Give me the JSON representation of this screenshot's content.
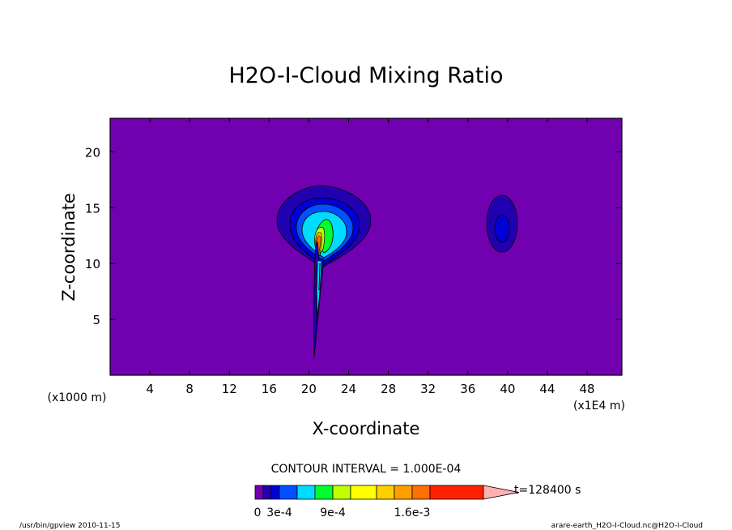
{
  "chart_data": {
    "type": "contour",
    "title": "H2O-I-Cloud Mixing Ratio",
    "xlabel": "X-coordinate",
    "ylabel": "Z-coordinate",
    "x_unit_left": "(x1000 m)",
    "x_unit_right": "(x1E4 m)",
    "xlim": [
      0,
      51.5
    ],
    "ylim": [
      0,
      23
    ],
    "x_ticks": [
      4,
      8,
      12,
      16,
      20,
      24,
      28,
      32,
      36,
      40,
      44,
      48
    ],
    "y_ticks": [
      5,
      10,
      15,
      20
    ],
    "contour_interval_label": "CONTOUR INTERVAL = 1.000E-04",
    "time_label": "t=128400 s",
    "colorbar": {
      "colors": [
        "#7000b0",
        "#2000b0",
        "#0000d8",
        "#0050ff",
        "#00dcff",
        "#00ff30",
        "#c0ff00",
        "#ffff00",
        "#ffd000",
        "#ffa000",
        "#ff7000",
        "#ff2000",
        "#ff7070",
        "#ffb0b0"
      ],
      "tick_labels": [
        "0",
        "3e-4",
        "9e-4",
        "1.6e-3"
      ],
      "tick_values": [
        0,
        0.0003,
        0.0009,
        0.0016
      ]
    },
    "background_color": "#7000b0",
    "features": [
      {
        "name": "main cloud",
        "center_x": 21,
        "center_z": 13.5,
        "max_value": 0.0016
      },
      {
        "name": "secondary cloud",
        "center_x": 39,
        "center_z": 13.3,
        "max_value": 0.0003
      }
    ]
  },
  "footer": {
    "left": "/usr/bin/gpview   2010-11-15",
    "right": "arare-earth_H2O-I-Cloud.nc@H2O-I-Cloud"
  }
}
